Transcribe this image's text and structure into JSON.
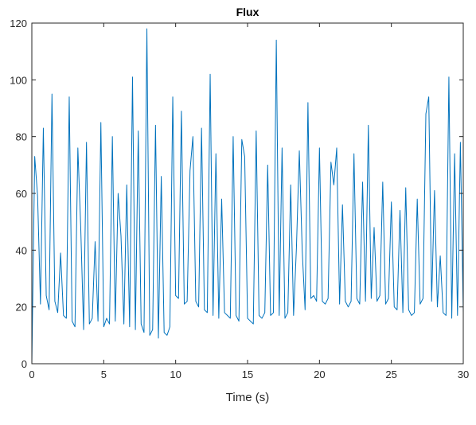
{
  "chart_data": {
    "type": "line",
    "title": "Flux",
    "x_label": "Time (s)",
    "x": [
      0,
      0.2,
      0.4,
      0.6,
      0.8,
      1.0,
      1.2,
      1.4,
      1.6,
      1.8,
      2.0,
      2.2,
      2.4,
      2.6,
      2.8,
      3.0,
      3.2,
      3.4,
      3.6,
      3.8,
      4.0,
      4.2,
      4.4,
      4.6,
      4.8,
      5.0,
      5.2,
      5.4,
      5.6,
      5.8,
      6.0,
      6.2,
      6.4,
      6.6,
      6.8,
      7.0,
      7.2,
      7.4,
      7.6,
      7.8,
      8.0,
      8.2,
      8.4,
      8.6,
      8.8,
      9.0,
      9.2,
      9.4,
      9.6,
      9.8,
      10.0,
      10.2,
      10.4,
      10.6,
      10.8,
      11.0,
      11.2,
      11.4,
      11.6,
      11.8,
      12.0,
      12.2,
      12.4,
      12.6,
      12.8,
      13.0,
      13.2,
      13.4,
      13.6,
      13.8,
      14.0,
      14.2,
      14.4,
      14.6,
      14.8,
      15.0,
      15.2,
      15.4,
      15.6,
      15.8,
      16.0,
      16.2,
      16.4,
      16.6,
      16.8,
      17.0,
      17.2,
      17.4,
      17.6,
      17.8,
      18.0,
      18.2,
      18.4,
      18.6,
      18.8,
      19.0,
      19.2,
      19.4,
      19.6,
      19.8,
      20.0,
      20.2,
      20.4,
      20.6,
      20.8,
      21.0,
      21.2,
      21.4,
      21.6,
      21.8,
      22.0,
      22.2,
      22.4,
      22.6,
      22.8,
      23.0,
      23.2,
      23.4,
      23.6,
      23.8,
      24.0,
      24.2,
      24.4,
      24.6,
      24.8,
      25.0,
      25.2,
      25.4,
      25.6,
      25.8,
      26.0,
      26.2,
      26.4,
      26.6,
      26.8,
      27.0,
      27.2,
      27.4,
      27.6,
      27.8,
      28.0,
      28.2,
      28.4,
      28.6,
      28.8,
      29.0,
      29.2,
      29.4,
      29.6,
      29.8,
      30.0
    ],
    "series": [
      {
        "name": "Flux",
        "color": "#0072bd",
        "values": [
          0,
          73,
          59,
          21,
          83,
          24,
          19,
          95,
          22,
          18,
          39,
          17,
          16,
          94,
          15,
          13,
          76,
          48,
          12,
          78,
          14,
          16,
          43,
          15,
          85,
          13,
          16,
          14,
          80,
          15,
          60,
          45,
          14,
          63,
          13,
          101,
          12,
          82,
          14,
          11,
          118,
          10,
          12,
          84,
          9,
          66,
          11,
          10,
          13,
          94,
          24,
          23,
          89,
          21,
          22,
          68,
          80,
          22,
          20,
          83,
          19,
          18,
          102,
          17,
          74,
          16,
          58,
          18,
          17,
          16,
          80,
          17,
          15,
          79,
          73,
          16,
          15,
          14,
          82,
          17,
          16,
          18,
          70,
          17,
          18,
          114,
          17,
          76,
          16,
          18,
          63,
          17,
          41,
          75,
          40,
          19,
          92,
          23,
          24,
          22,
          76,
          22,
          21,
          23,
          71,
          63,
          76,
          21,
          56,
          22,
          20,
          22,
          74,
          23,
          21,
          64,
          22,
          84,
          23,
          48,
          22,
          24,
          64,
          21,
          23,
          57,
          20,
          19,
          54,
          18,
          62,
          19,
          17,
          18,
          58,
          21,
          23,
          88,
          94,
          22,
          61,
          20,
          38,
          18,
          17,
          101,
          16,
          74,
          17,
          78,
          18
        ]
      }
    ],
    "xlim": [
      0,
      30
    ],
    "ylim": [
      0,
      120
    ],
    "xticks": [
      0,
      5,
      10,
      15,
      20,
      25,
      30
    ],
    "yticks": [
      0,
      20,
      40,
      60,
      80,
      100,
      120
    ]
  }
}
